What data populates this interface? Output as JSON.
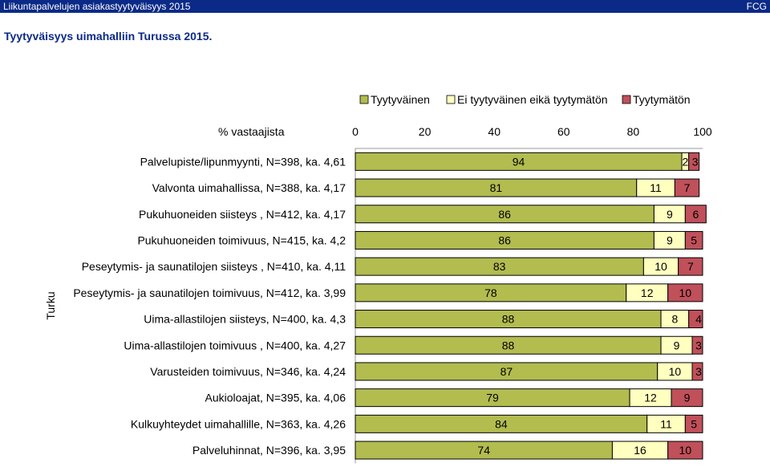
{
  "header": {
    "left": "Liikuntapalvelujen asiakastyytyväisyys 2015",
    "right": "FCG"
  },
  "chart_data": {
    "type": "bar",
    "orientation": "horizontal",
    "stacked": true,
    "title": "Tyytyväisyys uimahalliin Turussa 2015.",
    "axis_label": "% vastaajista",
    "group_label": "Turku",
    "xlim": [
      0,
      100
    ],
    "ticks": [
      "0",
      "20",
      "40",
      "60",
      "80",
      "100"
    ],
    "legend_position": "top",
    "categories": [
      "Palvelupiste/lipunmyynti, N=398, ka. 4,61",
      "Valvonta uimahallissa, N=388, ka. 4,17",
      "Pukuhuoneiden siisteys , N=412, ka. 4,17",
      "Pukuhuoneiden toimivuus, N=415, ka. 4,2",
      "Peseytymis- ja saunatilojen siisteys , N=410, ka. 4,11",
      "Peseytymis- ja saunatilojen toimivuus, N=412, ka. 3,99",
      "Uima-allastilojen siisteys, N=400, ka. 4,3",
      "Uima-allastilojen toimivuus , N=400, ka. 4,27",
      "Varusteiden toimivuus, N=346, ka. 4,24",
      "Aukioloajat, N=395, ka. 4,06",
      "Kulkuyhteydet uimahallille, N=363, ka. 4,26",
      "Palveluhinnat, N=396, ka. 3,95"
    ],
    "series": [
      {
        "name": "Tyytyväinen",
        "color": "#b2bc4f",
        "values": [
          94,
          81,
          86,
          86,
          83,
          78,
          88,
          88,
          87,
          79,
          84,
          74
        ]
      },
      {
        "name": "Ei tyytyväinen eikä tyytymätön",
        "color": "#ffffc0",
        "values": [
          2,
          11,
          9,
          9,
          10,
          12,
          8,
          9,
          10,
          12,
          11,
          16
        ]
      },
      {
        "name": "Tyytymätön",
        "color": "#c0505a",
        "values": [
          3,
          7,
          6,
          5,
          7,
          10,
          4,
          3,
          3,
          9,
          5,
          10
        ]
      }
    ]
  }
}
